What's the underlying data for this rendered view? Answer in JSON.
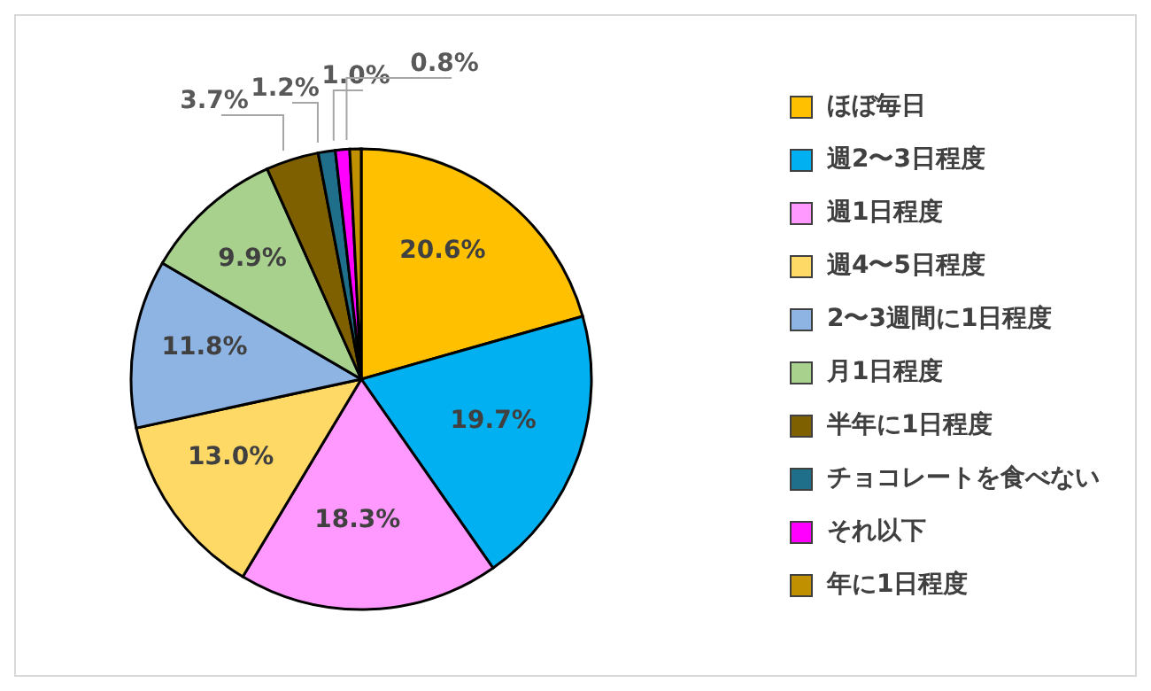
{
  "chart_data": {
    "type": "pie",
    "categories": [
      "ほぼ毎日",
      "週2〜3日程度",
      "週1日程度",
      "週4〜5日程度",
      "2〜3週間に1日程度",
      "月1日程度",
      "半年に1日程度",
      "チョコレートを食べない",
      "それ以下",
      "年に1日程度"
    ],
    "values": [
      20.6,
      19.7,
      18.3,
      13.0,
      11.8,
      9.9,
      3.7,
      1.2,
      1.0,
      0.8
    ],
    "colors": [
      "#ffc000",
      "#00b0f0",
      "#ff99ff",
      "#ffd966",
      "#8eb4e3",
      "#a9d18e",
      "#7f6000",
      "#1f6f8b",
      "#ff00ff",
      "#c09000"
    ],
    "value_labels": [
      "20.6%",
      "19.7%",
      "18.3%",
      "13.0%",
      "11.8%",
      "9.9%",
      "3.7%",
      "1.2%",
      "1.0%",
      "0.8%"
    ],
    "legend": "right"
  }
}
